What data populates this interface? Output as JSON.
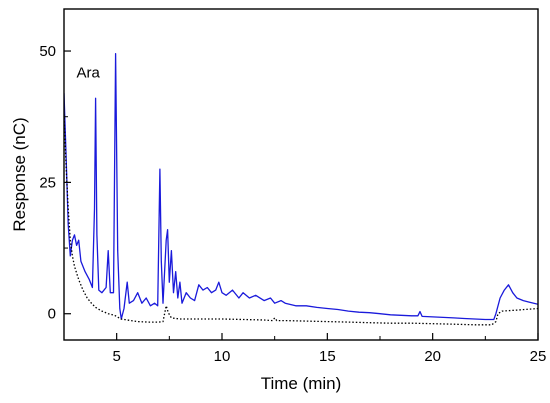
{
  "chart_data": {
    "type": "line",
    "title": "",
    "xlabel": "Time (min)",
    "ylabel": "Response (nC)",
    "xlim": [
      2.5,
      25
    ],
    "ylim": [
      -5,
      58
    ],
    "x_ticks": [
      5,
      10,
      15,
      20,
      25
    ],
    "y_ticks": [
      0,
      25,
      50
    ],
    "grid": false,
    "legend": "none",
    "annotations": [
      {
        "text": "Ara",
        "x": 3.65,
        "y": 45
      }
    ],
    "series": [
      {
        "style": "solid",
        "color": "#1a1adb",
        "points": [
          [
            2.5,
            42
          ],
          [
            2.6,
            30
          ],
          [
            2.7,
            17
          ],
          [
            2.8,
            11
          ],
          [
            2.9,
            14
          ],
          [
            3.0,
            15
          ],
          [
            3.1,
            13
          ],
          [
            3.2,
            14
          ],
          [
            3.3,
            10
          ],
          [
            3.5,
            8
          ],
          [
            3.7,
            6.5
          ],
          [
            3.85,
            5
          ],
          [
            3.95,
            20
          ],
          [
            4.0,
            41
          ],
          [
            4.06,
            15
          ],
          [
            4.15,
            4.5
          ],
          [
            4.3,
            4
          ],
          [
            4.5,
            5
          ],
          [
            4.6,
            12
          ],
          [
            4.7,
            4
          ],
          [
            4.85,
            4
          ],
          [
            4.95,
            49.5
          ],
          [
            5.05,
            12
          ],
          [
            5.15,
            1
          ],
          [
            5.22,
            -1
          ],
          [
            5.35,
            1
          ],
          [
            5.5,
            6
          ],
          [
            5.6,
            2
          ],
          [
            5.8,
            2.5
          ],
          [
            6.0,
            4
          ],
          [
            6.2,
            2
          ],
          [
            6.4,
            3
          ],
          [
            6.6,
            1.5
          ],
          [
            6.8,
            2
          ],
          [
            6.95,
            1.5
          ],
          [
            7.05,
            27.5
          ],
          [
            7.12,
            10
          ],
          [
            7.2,
            2
          ],
          [
            7.35,
            14
          ],
          [
            7.42,
            16
          ],
          [
            7.5,
            6
          ],
          [
            7.6,
            12
          ],
          [
            7.7,
            4
          ],
          [
            7.8,
            8
          ],
          [
            7.9,
            3
          ],
          [
            8.0,
            6
          ],
          [
            8.1,
            2
          ],
          [
            8.3,
            4
          ],
          [
            8.5,
            3
          ],
          [
            8.7,
            2.5
          ],
          [
            8.9,
            5.5
          ],
          [
            9.1,
            4.5
          ],
          [
            9.3,
            5
          ],
          [
            9.5,
            4
          ],
          [
            9.7,
            4.5
          ],
          [
            9.85,
            6
          ],
          [
            10.0,
            4
          ],
          [
            10.2,
            3.5
          ],
          [
            10.5,
            4.5
          ],
          [
            10.8,
            3
          ],
          [
            11.0,
            4
          ],
          [
            11.3,
            3
          ],
          [
            11.6,
            3.5
          ],
          [
            12.0,
            2.5
          ],
          [
            12.3,
            3
          ],
          [
            12.5,
            2
          ],
          [
            12.8,
            2.5
          ],
          [
            13.0,
            2
          ],
          [
            13.5,
            1.5
          ],
          [
            14.0,
            1.5
          ],
          [
            14.5,
            1.2
          ],
          [
            15.0,
            1
          ],
          [
            15.5,
            0.8
          ],
          [
            16.0,
            0.5
          ],
          [
            16.5,
            0.3
          ],
          [
            17.0,
            0.2
          ],
          [
            17.5,
            0
          ],
          [
            18.0,
            -0.2
          ],
          [
            18.5,
            -0.3
          ],
          [
            19.0,
            -0.4
          ],
          [
            19.3,
            -0.4
          ],
          [
            19.4,
            0.4
          ],
          [
            19.5,
            -0.5
          ],
          [
            20.0,
            -0.6
          ],
          [
            20.5,
            -0.7
          ],
          [
            21.0,
            -0.8
          ],
          [
            21.5,
            -0.9
          ],
          [
            22.0,
            -1
          ],
          [
            22.5,
            -1.1
          ],
          [
            22.9,
            -1.1
          ],
          [
            23.0,
            0
          ],
          [
            23.2,
            3
          ],
          [
            23.4,
            4.5
          ],
          [
            23.6,
            5.5
          ],
          [
            23.8,
            4
          ],
          [
            24.0,
            3
          ],
          [
            24.3,
            2.5
          ],
          [
            24.6,
            2.2
          ],
          [
            25.0,
            1.8
          ]
        ]
      },
      {
        "style": "dotted",
        "color": "#000000",
        "points": [
          [
            2.5,
            38
          ],
          [
            2.6,
            28
          ],
          [
            2.7,
            20
          ],
          [
            2.8,
            14
          ],
          [
            2.9,
            11
          ],
          [
            3.0,
            9
          ],
          [
            3.2,
            6.5
          ],
          [
            3.4,
            4.5
          ],
          [
            3.6,
            3
          ],
          [
            3.8,
            2
          ],
          [
            4.0,
            1.2
          ],
          [
            4.3,
            0.5
          ],
          [
            4.6,
            0
          ],
          [
            4.9,
            -0.3
          ],
          [
            5.2,
            -1
          ],
          [
            5.5,
            -1.2
          ],
          [
            6.0,
            -1.5
          ],
          [
            6.5,
            -1.6
          ],
          [
            7.0,
            -1.6
          ],
          [
            7.2,
            -1.5
          ],
          [
            7.35,
            1.5
          ],
          [
            7.45,
            0.2
          ],
          [
            7.6,
            -0.8
          ],
          [
            8.0,
            -1
          ],
          [
            9.0,
            -1
          ],
          [
            10.0,
            -1
          ],
          [
            11.0,
            -1.1
          ],
          [
            12.0,
            -1.2
          ],
          [
            12.4,
            -1.3
          ],
          [
            12.5,
            -0.8
          ],
          [
            12.6,
            -1.3
          ],
          [
            13.0,
            -1.3
          ],
          [
            14.0,
            -1.4
          ],
          [
            15.0,
            -1.5
          ],
          [
            16.0,
            -1.6
          ],
          [
            17.0,
            -1.7
          ],
          [
            18.0,
            -1.8
          ],
          [
            19.0,
            -1.8
          ],
          [
            20.0,
            -1.9
          ],
          [
            21.0,
            -2
          ],
          [
            22.0,
            -2.1
          ],
          [
            22.8,
            -2.1
          ],
          [
            23.0,
            -1.5
          ],
          [
            23.1,
            0
          ],
          [
            23.3,
            0.5
          ],
          [
            24.0,
            0.7
          ],
          [
            25.0,
            1
          ]
        ]
      }
    ]
  }
}
